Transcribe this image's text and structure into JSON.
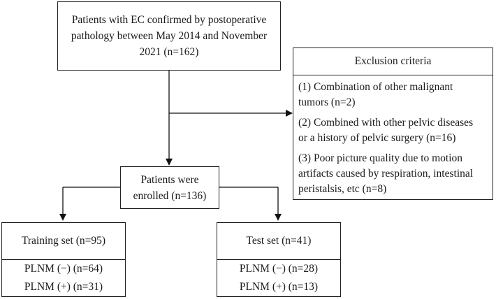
{
  "source": {
    "lines": [
      "Patients with EC confirmed by postoperative",
      "pathology between May 2014 and November",
      "2021 (n=162)"
    ]
  },
  "exclusion": {
    "title": "Exclusion criteria",
    "items": [
      [
        "(1) Combination of other malignant",
        "tumors (n=2)"
      ],
      [
        "(2) Combined with other pelvic diseases",
        "or a history of pelvic surgery (n=16)"
      ],
      [
        "(3) Poor picture quality due to motion",
        "artifacts caused by respiration, intestinal",
        "peristalsis, etc (n=8)"
      ]
    ]
  },
  "enrolled": {
    "lines": [
      "Patients were",
      "enrolled (n=136)"
    ]
  },
  "training": {
    "title": "Training set (n=95)",
    "rows": [
      "PLNM (−) (n=64)",
      "PLNM (+) (n=31)"
    ]
  },
  "test": {
    "title": "Test set (n=41)",
    "rows": [
      "PLNM (−) (n=28)",
      "PLNM (+) (n=13)"
    ]
  }
}
